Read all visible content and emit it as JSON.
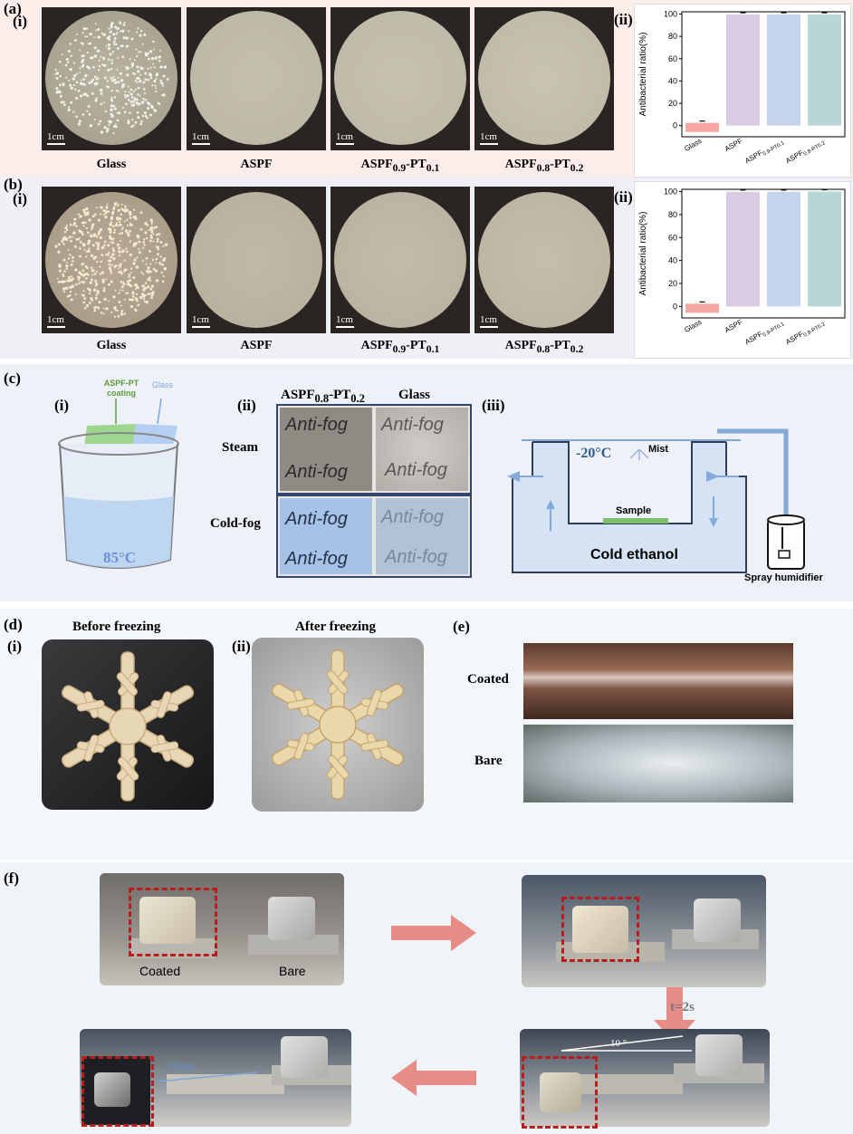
{
  "panel_a": {
    "label": "(a)",
    "sub_i": "(i)",
    "sub_ii": "(ii)",
    "dishes": [
      {
        "caption": "Glass",
        "scale": "1cm"
      },
      {
        "caption": "ASPF",
        "scale": "1cm"
      },
      {
        "caption_main": "ASPF",
        "caption_s1": "0.9",
        "caption_mid": "-PT",
        "caption_s2": "0.1",
        "scale": "1cm"
      },
      {
        "caption_main": "ASPF",
        "caption_s1": "0.8",
        "caption_mid": "-PT",
        "caption_s2": "0.2",
        "scale": "1cm"
      }
    ]
  },
  "panel_b": {
    "label": "(b)",
    "sub_i": "(i)",
    "sub_ii": "(ii)",
    "dishes": [
      {
        "caption": "Glass",
        "scale": "1cm"
      },
      {
        "caption": "ASPF",
        "scale": "1cm"
      },
      {
        "caption_main": "ASPF",
        "caption_s1": "0.9",
        "caption_mid": "-PT",
        "caption_s2": "0.1",
        "scale": "1cm"
      },
      {
        "caption_main": "ASPF",
        "caption_s1": "0.8",
        "caption_mid": "-PT",
        "caption_s2": "0.2",
        "scale": "1cm"
      }
    ]
  },
  "chart_data": [
    {
      "type": "bar",
      "categories": [
        "Glass",
        "ASPF",
        "ASPF0.9-PT0.1",
        "ASPF0.8-PT0.2"
      ],
      "category_labels": [
        "Glass",
        "ASPF",
        "ASPF",
        "ASPF"
      ],
      "category_subs": [
        "",
        "",
        "0.9-PT0.1",
        "0.8-PT0.2"
      ],
      "values": [
        0,
        99.5,
        99.5,
        99.5
      ],
      "ylabel": "Antibacterial ratio(%)",
      "ylim": [
        -10,
        102
      ],
      "yticks": [
        "0",
        "20",
        "40",
        "60",
        "80",
        "100"
      ],
      "colors": [
        "#f3a7a0",
        "#d9cbe4",
        "#c5d4ec",
        "#b7d6d6"
      ]
    },
    {
      "type": "bar",
      "categories": [
        "Glass",
        "ASPF",
        "ASPF0.9-PT0.1",
        "ASPF0.8-PT0.2"
      ],
      "category_labels": [
        "Glass",
        "ASPF",
        "ASPF",
        "ASPF"
      ],
      "category_subs": [
        "",
        "",
        "0.9-PT0.1",
        "0.8-PT0.2"
      ],
      "values": [
        0,
        99.8,
        99.8,
        100
      ],
      "ylabel": "Antibacterial ratio(%)",
      "ylim": [
        -10,
        102
      ],
      "yticks": [
        "0",
        "20",
        "40",
        "60",
        "80",
        "100"
      ],
      "colors": [
        "#f3a7a0",
        "#d9cbe4",
        "#c5d4ec",
        "#b7d6d6"
      ]
    }
  ],
  "panel_c": {
    "label": "(c)",
    "sub_i": "(i)",
    "sub_ii": "(ii)",
    "sub_iii": "(iii)",
    "coating_label_1": "ASPF-PT",
    "coating_label_2": "coating",
    "glass_label": "Glass",
    "temp_beaker": "85°C",
    "col1_main": "ASPF",
    "col1_s1": "0.8",
    "col1_mid": "-PT",
    "col1_s2": "0.2",
    "col2": "Glass",
    "row1": "Steam",
    "row2": "Cold-fog",
    "antifog": "Anti-fog",
    "temp_cold": "-20°C",
    "mist": "Mist",
    "sample": "Sample",
    "ethanol": "Cold ethanol",
    "humidifier": "Spray humidifier"
  },
  "panel_d": {
    "label": "(d)",
    "sub_i": "(i)",
    "sub_ii": "(ii)",
    "before": "Before freezing",
    "after": "After freezing"
  },
  "panel_e": {
    "label": "(e)",
    "coated": "Coated",
    "bare": "Bare"
  },
  "panel_f": {
    "label": "(f)",
    "coated": "Coated",
    "bare": "Bare",
    "time": "t=2s",
    "angle": "10 °",
    "distance": "3.0cm"
  }
}
